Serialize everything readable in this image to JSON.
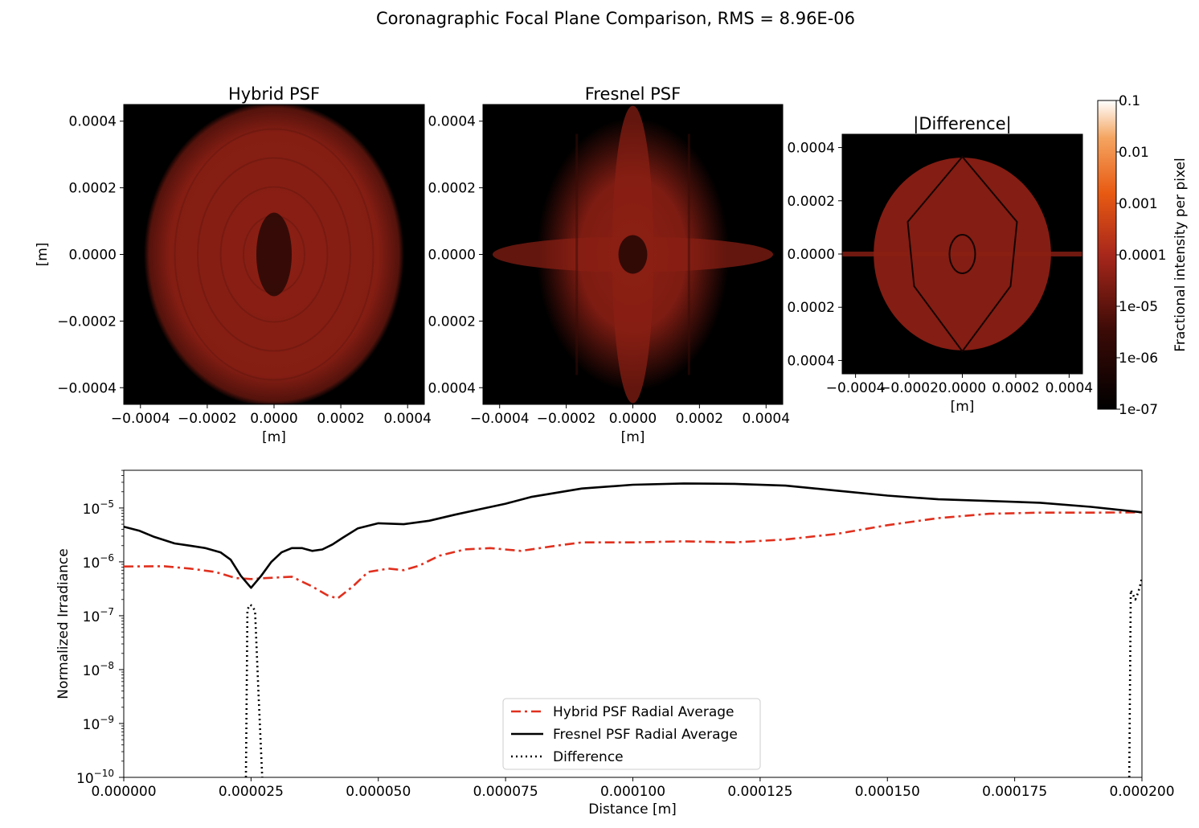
{
  "suptitle": "Coronagraphic Focal Plane Comparison, RMS = 8.96E-06",
  "colors": {
    "hybrid_line": "#e0301e",
    "fresnel_line": "#000000",
    "difference_line": "#000000",
    "psf_background": "#000000",
    "psf_glow": "#8b1f14"
  },
  "chart_data": [
    {
      "type": "heatmap",
      "title": "Hybrid PSF",
      "xlabel": "[m]",
      "ylabel": "[m]",
      "xticks": [
        "−0.0004",
        "−0.0002",
        "0.0000",
        "0.0002",
        "0.0004"
      ],
      "yticks": [
        "0.0004",
        "0.0002",
        "0.0000",
        "−0.0002",
        "−0.0004"
      ],
      "xlim": [
        -0.00045,
        0.00045
      ],
      "ylim": [
        -0.00045,
        0.00045
      ],
      "colormap": "gist_heat",
      "log_scale": true,
      "pattern": "oval"
    },
    {
      "type": "heatmap",
      "title": "Fresnel PSF",
      "xlabel": "[m]",
      "ylabel": "",
      "xticks": [
        "−0.0004",
        "−0.0002",
        "0.0000",
        "0.0002",
        "0.0004"
      ],
      "yticks": [
        "0.0004",
        "0.0002",
        "0.0000",
        "0.0002",
        "0.0004"
      ],
      "xlim": [
        -0.00045,
        0.00045
      ],
      "ylim": [
        -0.00045,
        0.00045
      ],
      "colormap": "gist_heat",
      "log_scale": true,
      "pattern": "cross"
    },
    {
      "type": "heatmap",
      "title": "|Difference|",
      "xlabel": "[m]",
      "ylabel": "",
      "xticks": [
        "−0.0004",
        "−0.0002",
        "0.0000",
        "0.0002",
        "0.0004"
      ],
      "yticks": [
        "0.0004",
        "0.0002",
        "0.0000",
        "0.0002",
        "0.0004"
      ],
      "xlim": [
        -0.00045,
        0.00045
      ],
      "ylim": [
        -0.00045,
        0.00045
      ],
      "colormap": "gist_heat",
      "log_scale": true,
      "pattern": "diamond",
      "colorbar": {
        "label": "Fractional intensity per pixel",
        "ticks": [
          "0.1",
          "0.01",
          "0.001",
          "0.0001",
          "1e-05",
          "1e-06",
          "1e-07"
        ],
        "range": [
          1e-07,
          0.1
        ],
        "log_scale": true
      }
    },
    {
      "type": "line",
      "xlabel": "Distance [m]",
      "ylabel": "Normalized Irradiance",
      "xlim": [
        0,
        0.0002
      ],
      "ylim_log10": [
        -10,
        -4.3
      ],
      "y_log_scale": true,
      "xticks": [
        "0.000000",
        "0.000025",
        "0.000050",
        "0.000075",
        "0.000100",
        "0.000125",
        "0.000150",
        "0.000175",
        "0.000200"
      ],
      "yticks": [
        {
          "base": "10",
          "exp": "−5",
          "log10": -5
        },
        {
          "base": "10",
          "exp": "−6",
          "log10": -6
        },
        {
          "base": "10",
          "exp": "−7",
          "log10": -7
        },
        {
          "base": "10",
          "exp": "−8",
          "log10": -8
        },
        {
          "base": "10",
          "exp": "−9",
          "log10": -9
        },
        {
          "base": "10",
          "exp": "−10",
          "log10": -10
        }
      ],
      "legend_position": "lower center",
      "series": [
        {
          "name": "Hybrid PSF Radial Average",
          "style": "dashdot",
          "color": "#e0301e",
          "x": [
            0,
            8e-06,
            1.3e-05,
            1.8e-05,
            2.2e-05,
            2.5e-05,
            2.8e-05,
            3.3e-05,
            3.7e-05,
            4e-05,
            4.2e-05,
            4.5e-05,
            4.8e-05,
            5.2e-05,
            5.5e-05,
            5.8e-05,
            6.2e-05,
            6.7e-05,
            7.2e-05,
            7.8e-05,
            8.5e-05,
            9e-05,
            0.0001,
            0.00011,
            0.00012,
            0.00013,
            0.00014,
            0.00015,
            0.00016,
            0.00017,
            0.00018,
            0.00019,
            0.0002
          ],
          "y": [
            8.2e-07,
            8.3e-07,
            7.5e-07,
            6.5e-07,
            5e-07,
            4.8e-07,
            5e-07,
            5.3e-07,
            3.5e-07,
            2.4e-07,
            2.1e-07,
            3.5e-07,
            6.5e-07,
            7.5e-07,
            7e-07,
            8.5e-07,
            1.3e-06,
            1.7e-06,
            1.8e-06,
            1.6e-06,
            2e-06,
            2.3e-06,
            2.3e-06,
            2.4e-06,
            2.3e-06,
            2.6e-06,
            3.3e-06,
            4.8e-06,
            6.5e-06,
            7.8e-06,
            8.2e-06,
            8.2e-06,
            8.3e-06
          ]
        },
        {
          "name": "Fresnel PSF Radial Average",
          "style": "solid",
          "color": "#000000",
          "x": [
            0,
            3e-06,
            6e-06,
            1e-05,
            1.3e-05,
            1.6e-05,
            1.9e-05,
            2.1e-05,
            2.3e-05,
            2.5e-05,
            2.7e-05,
            2.9e-05,
            3.1e-05,
            3.3e-05,
            3.5e-05,
            3.7e-05,
            3.9e-05,
            4.1e-05,
            4.3e-05,
            4.6e-05,
            5e-05,
            5.5e-05,
            6e-05,
            6.5e-05,
            7e-05,
            7.5e-05,
            8e-05,
            9e-05,
            0.0001,
            0.00011,
            0.00012,
            0.00013,
            0.00014,
            0.00015,
            0.00016,
            0.00017,
            0.00018,
            0.00019,
            0.0002
          ],
          "y": [
            4.5e-06,
            3.8e-06,
            2.9e-06,
            2.2e-06,
            2e-06,
            1.8e-06,
            1.5e-06,
            1.1e-06,
            5.5e-07,
            3.3e-07,
            5.5e-07,
            1e-06,
            1.5e-06,
            1.8e-06,
            1.8e-06,
            1.6e-06,
            1.7e-06,
            2.1e-06,
            2.8e-06,
            4.2e-06,
            5.2e-06,
            5e-06,
            5.8e-06,
            7.5e-06,
            9.5e-06,
            1.2e-05,
            1.6e-05,
            2.3e-05,
            2.7e-05,
            2.85e-05,
            2.8e-05,
            2.6e-05,
            2.1e-05,
            1.7e-05,
            1.45e-05,
            1.35e-05,
            1.25e-05,
            1.05e-05,
            8.3e-06
          ]
        },
        {
          "name": "Difference",
          "style": "dotted",
          "color": "#000000",
          "segments": [
            {
              "x": [
                2.4e-05,
                2.43e-05,
                2.48e-05,
                2.53e-05,
                2.58e-05,
                2.65e-05,
                2.72e-05
              ],
              "y": [
                1e-10,
                1.3e-07,
                1.6e-07,
                1.5e-07,
                1.2e-07,
                3e-09,
                1e-10
              ]
            },
            {
              "x": [
                0.0001975,
                0.0001978,
                0.0001982,
                0.0001987,
                0.0001992,
                0.0001996,
                0.0002
              ],
              "y": [
                1e-10,
                3e-07,
                2.5e-07,
                2e-07,
                2.6e-07,
                3.5e-07,
                5e-07
              ]
            }
          ]
        }
      ]
    }
  ]
}
